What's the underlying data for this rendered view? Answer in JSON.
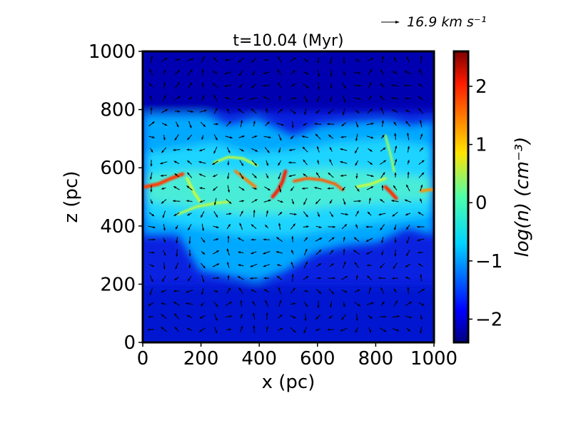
{
  "chart_data": {
    "type": "heatmap",
    "title": "t=10.04 (Myr)",
    "xlabel": "x (pc)",
    "ylabel": "z (pc)",
    "xlim": [
      0,
      1000
    ],
    "ylim": [
      0,
      1000
    ],
    "x_ticks": [
      0,
      200,
      400,
      600,
      800,
      1000
    ],
    "y_ticks": [
      0,
      200,
      400,
      600,
      800,
      1000
    ],
    "colorbar": {
      "label": "log(n) (cm⁻³)",
      "range": [
        -2.4,
        2.6
      ],
      "ticks": [
        2,
        1,
        0,
        -1,
        -2
      ],
      "tick_labels": [
        "2",
        "1",
        "0",
        "−1",
        "−2"
      ],
      "colormap": "jet"
    },
    "vector_key": {
      "label": "16.9 km s⁻¹",
      "magnitude": 16.9
    },
    "density_profile": {
      "description_units": "log(n) vs z at a typical column",
      "z": [
        0,
        200,
        330,
        400,
        500,
        550,
        600,
        700,
        800,
        900,
        1000
      ],
      "log_n": [
        -2.0,
        -1.8,
        -1.7,
        -0.8,
        -0.4,
        0.3,
        -0.5,
        -0.9,
        -1.2,
        -2.2,
        -2.3
      ]
    },
    "dense_filaments": [
      {
        "x": [
          10,
          50,
          80,
          110
        ],
        "z": [
          540,
          545,
          555,
          565
        ],
        "peak_log_n": 2.0
      },
      {
        "x": [
          370,
          390,
          410,
          430
        ],
        "z": [
          505,
          525,
          545,
          560
        ],
        "peak_log_n": 2.4
      },
      {
        "x": [
          460,
          480,
          500,
          520
        ],
        "z": [
          510,
          540,
          575,
          595
        ],
        "peak_log_n": 2.4
      },
      {
        "x": [
          560,
          600,
          640,
          680
        ],
        "z": [
          555,
          550,
          540,
          520
        ],
        "peak_log_n": 1.8
      },
      {
        "x": [
          840,
          860,
          880
        ],
        "z": [
          510,
          530,
          540
        ],
        "peak_log_n": 1.6
      },
      {
        "x": [
          950,
          980,
          1000
        ],
        "z": [
          520,
          530,
          535
        ],
        "peak_log_n": 1.4
      }
    ]
  }
}
